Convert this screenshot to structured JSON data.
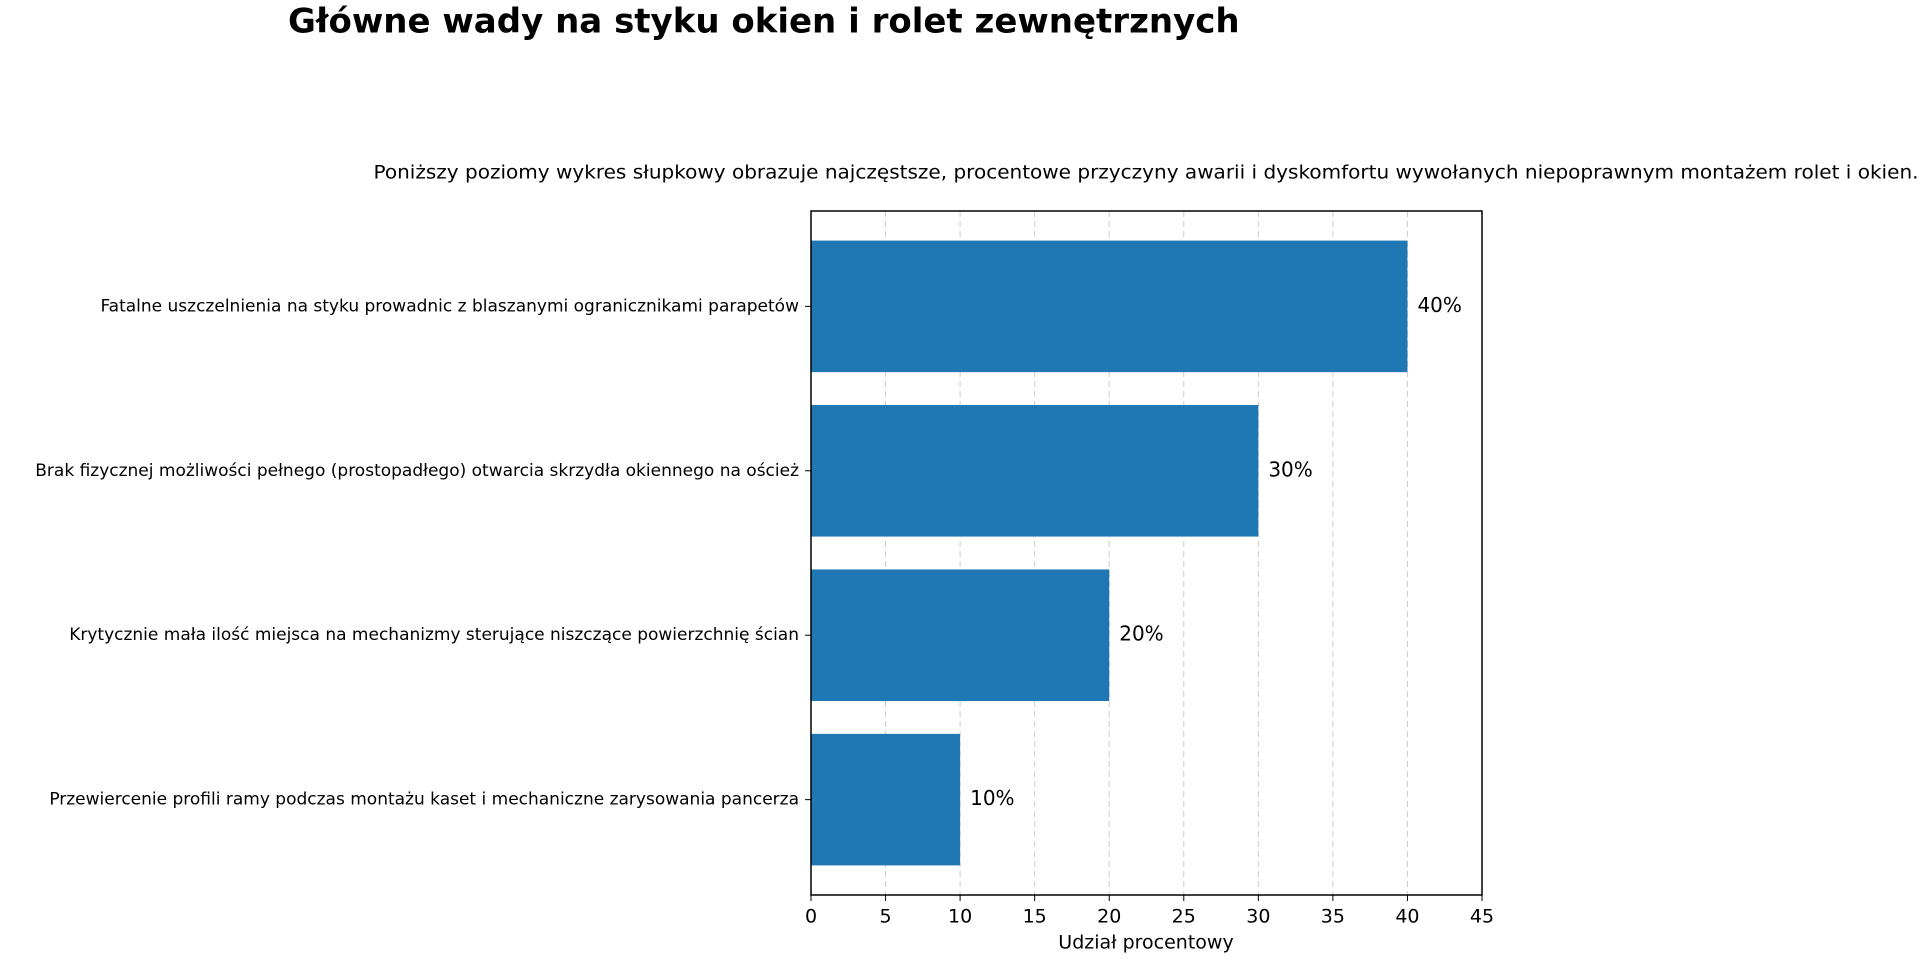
{
  "chart_data": {
    "type": "barh",
    "title": "Główne wady na styku okien i rolet zewnętrznych",
    "subtitle": "Poniższy poziomy wykres słupkowy obrazuje najczęstsze, procentowe przyczyny awarii i dyskomfortu wywołanych niepoprawnym montażem rolet i okien.",
    "categories": [
      "Fatalne uszczelnienia na styku prowadnic z blaszanymi ogranicznikami parapetów",
      "Brak fizycznej możliwości pełnego (prostopadłego) otwarcia skrzydła okiennego na oścież",
      "Krytycznie mała ilość miejsca na mechanizmy sterujące niszczące powierzchnię ścian",
      "Przewiercenie profili ramy podczas montażu kaset i mechaniczne zarysowania pancerza"
    ],
    "values": [
      40,
      30,
      20,
      10
    ],
    "value_labels": [
      "40%",
      "30%",
      "20%",
      "10%"
    ],
    "color": "#1f77b4",
    "xlabel": "Udział procentowy",
    "xlim": [
      0,
      45
    ],
    "xticks": [
      0,
      5,
      10,
      15,
      20,
      25,
      30,
      35,
      40,
      45
    ],
    "grid": true
  }
}
